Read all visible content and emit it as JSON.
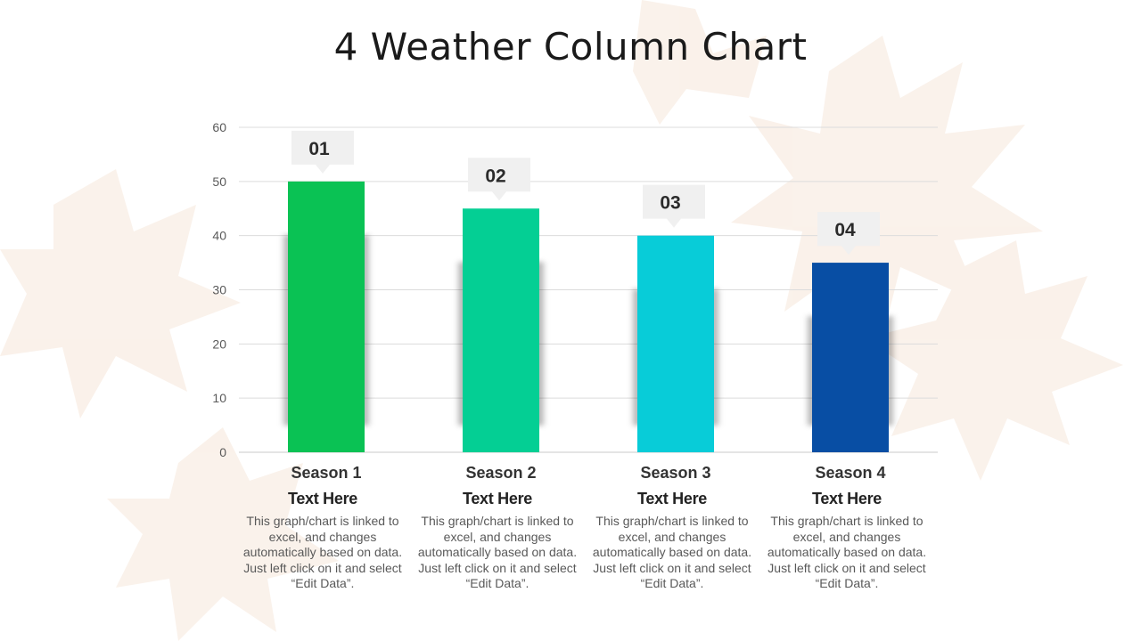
{
  "title": "4 Weather Column Chart",
  "chart_data": {
    "type": "bar",
    "categories": [
      "Season 1",
      "Season 2",
      "Season 3",
      "Season 4"
    ],
    "values": [
      50,
      45,
      40,
      35
    ],
    "badges": [
      "01",
      "02",
      "03",
      "04"
    ],
    "colors": [
      "#0ac254",
      "#04cf94",
      "#08ccd8",
      "#084ea4"
    ],
    "ylim": [
      0,
      60
    ],
    "yticks": [
      "0",
      "10",
      "20",
      "30",
      "40",
      "50",
      "60"
    ],
    "grid": true
  },
  "descriptions": [
    {
      "title": "Text Here",
      "body": "This graph/chart is linked to excel, and changes automatically based on data. Just left click on it and select “Edit Data”."
    },
    {
      "title": "Text Here",
      "body": "This graph/chart is linked to excel, and changes automatically based on data. Just left click on it and select “Edit Data”."
    },
    {
      "title": "Text Here",
      "body": "This graph/chart is linked to excel, and changes automatically based on data. Just left click on it and select “Edit Data”."
    },
    {
      "title": "Text Here",
      "body": "This graph/chart is linked to excel, and changes automatically based on data. Just left click on it and select “Edit Data”."
    }
  ]
}
